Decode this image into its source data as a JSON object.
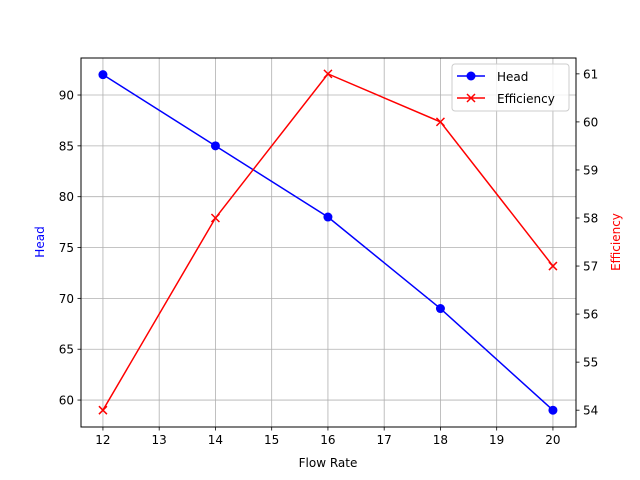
{
  "chart_data": {
    "type": "line",
    "title": "",
    "xlabel": "Flow Rate",
    "ylabel": "Head",
    "y2label": "Efficiency",
    "x": [
      12,
      14,
      16,
      18,
      20
    ],
    "xlim": [
      11.61,
      20.41
    ],
    "ylim": [
      57.35,
      93.64
    ],
    "y2lim": [
      53.65,
      61.33
    ],
    "xticks": [
      12,
      13,
      14,
      15,
      16,
      17,
      18,
      19,
      20
    ],
    "yticks": [
      60,
      65,
      70,
      75,
      80,
      85,
      90
    ],
    "y2ticks": [
      54,
      55,
      56,
      57,
      58,
      59,
      60,
      61
    ],
    "grid": true,
    "legend_position": "upper right",
    "series": [
      {
        "name": "Head",
        "axis": "left",
        "values": [
          92,
          85,
          78,
          69,
          59
        ],
        "color": "#0000ff",
        "marker": "circle"
      },
      {
        "name": "Efficiency",
        "axis": "right",
        "values": [
          54,
          58,
          61,
          60,
          57
        ],
        "color": "#ff0000",
        "marker": "x"
      }
    ]
  },
  "colors": {
    "head": "#0000ff",
    "efficiency": "#ff0000",
    "grid": "#b0b0b0",
    "axis": "#000000"
  }
}
